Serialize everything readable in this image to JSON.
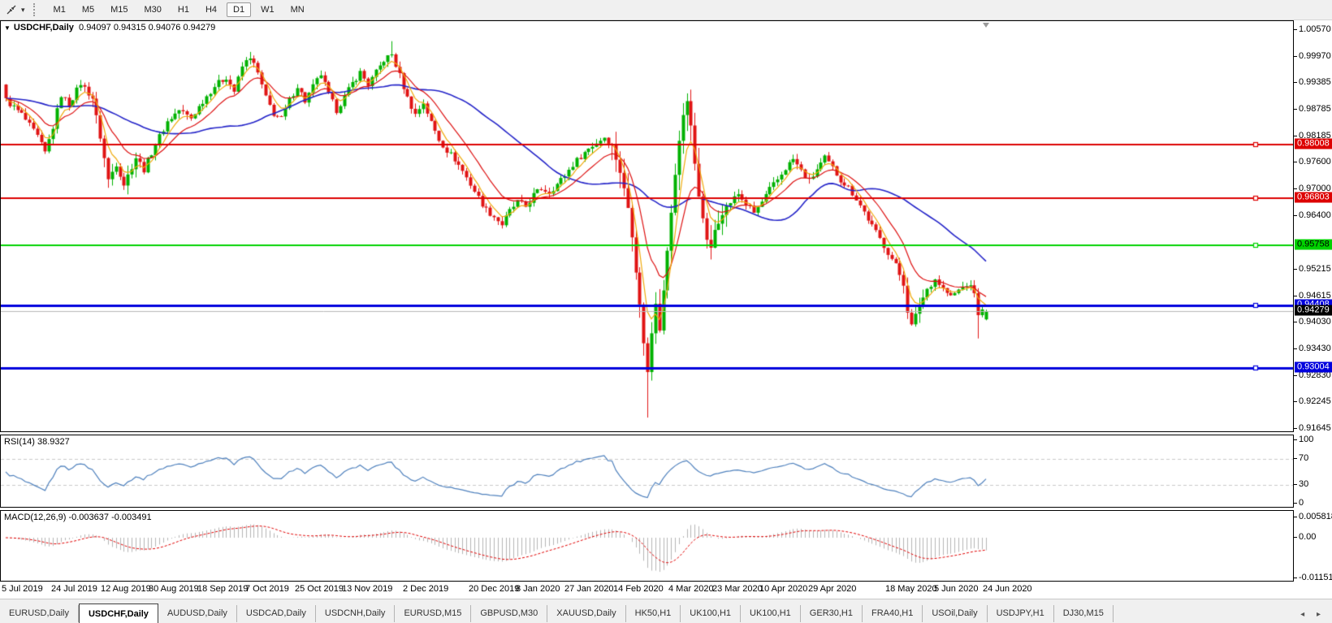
{
  "icons": {
    "caret": "▾",
    "collapse": "▼",
    "tab_prev": "◂",
    "tab_next": "▸",
    "cursor_tool": "cursor-crosshair"
  },
  "toolbar": {
    "timeframes": [
      {
        "label": "M1",
        "active": false
      },
      {
        "label": "M5",
        "active": false
      },
      {
        "label": "M15",
        "active": false
      },
      {
        "label": "M30",
        "active": false
      },
      {
        "label": "H1",
        "active": false
      },
      {
        "label": "H4",
        "active": false
      },
      {
        "label": "D1",
        "active": true
      },
      {
        "label": "W1",
        "active": false
      },
      {
        "label": "MN",
        "active": false
      }
    ]
  },
  "chart": {
    "title": "USDCHF,Daily",
    "ohlc_text": "0.94097 0.94315 0.94076 0.94279"
  },
  "rsi": {
    "title": "RSI(14) 38.9327"
  },
  "macd": {
    "title": "MACD(12,26,9) -0.003637 -0.003491"
  },
  "chart_data": {
    "type": "candlestick",
    "symbol": "USDCHF",
    "period": "Daily",
    "last_ohlc": {
      "o": 0.94097,
      "h": 0.94315,
      "l": 0.94076,
      "c": 0.94279
    },
    "y_axis": {
      "top_price": 1.00769,
      "bottom_price": 0.91593,
      "ticks": [
        1.0057,
        0.9997,
        0.99385,
        0.98785,
        0.98185,
        0.976,
        0.97,
        0.964,
        0.95215,
        0.94615,
        0.9403,
        0.9343,
        0.9283,
        0.92245,
        0.91645
      ]
    },
    "x_axis": {
      "labels": [
        "5 Jul 2019",
        "24 Jul 2019",
        "12 Aug 2019",
        "30 Aug 2019",
        "18 Sep 2019",
        "7 Oct 2019",
        "25 Oct 2019",
        "13 Nov 2019",
        "2 Dec 2019",
        "20 Dec 2019",
        "8 Jan 2020",
        "27 Jan 2020",
        "14 Feb 2020",
        "4 Mar 2020",
        "23 Mar 2020",
        "10 Apr 2020",
        "29 Apr 2020",
        "18 May 2020",
        "5 Jun 2020",
        "24 Jun 2020"
      ],
      "starts": [
        2,
        63,
        124,
        183,
        243,
        302,
        363,
        421,
        496,
        577,
        635,
        695,
        755,
        823,
        877,
        935,
        995,
        1090,
        1150,
        1210
      ]
    },
    "levels": [
      {
        "price": 0.98008,
        "label": "0.98008",
        "color": "#dd0000",
        "label_text_color": "#ffffff",
        "width": 2
      },
      {
        "price": 0.96803,
        "label": "0.96803",
        "color": "#dd0000",
        "label_text_color": "#ffffff",
        "width": 2
      },
      {
        "price": 0.95758,
        "label": "0.95758",
        "color": "#00d200",
        "label_text_color": "#000000",
        "width": 2
      },
      {
        "price": 0.94408,
        "label": "0.94408",
        "color": "#0000dd",
        "label_text_color": "#ffffff",
        "width": 3
      },
      {
        "price": 0.93004,
        "label": "0.93004",
        "color": "#0000dd",
        "label_text_color": "#ffffff",
        "width": 3
      }
    ],
    "bid_line": {
      "price": 0.94279,
      "label": "0.94279",
      "color": "#b8b8b8",
      "label_bg": "#000000",
      "label_text_color": "#ffffff"
    },
    "candles": {
      "count": 250,
      "first_open": 0.9935,
      "up_color": "#00b200",
      "down_color": "#e01414",
      "anchors": [
        [
          0,
          0.99
        ],
        [
          4,
          0.9868
        ],
        [
          8,
          0.9818
        ],
        [
          10,
          0.9782
        ],
        [
          12,
          0.984
        ],
        [
          14,
          0.9912
        ],
        [
          16,
          0.989
        ],
        [
          19,
          0.9938
        ],
        [
          22,
          0.9905
        ],
        [
          24,
          0.9818
        ],
        [
          26,
          0.9722
        ],
        [
          28,
          0.9758
        ],
        [
          30,
          0.9712
        ],
        [
          33,
          0.9772
        ],
        [
          35,
          0.9745
        ],
        [
          38,
          0.9802
        ],
        [
          41,
          0.9852
        ],
        [
          44,
          0.9878
        ],
        [
          47,
          0.986
        ],
        [
          50,
          0.9898
        ],
        [
          53,
          0.9932
        ],
        [
          56,
          0.9952
        ],
        [
          58,
          0.992
        ],
        [
          60,
          0.9975
        ],
        [
          62,
          0.9998
        ],
        [
          64,
          0.996
        ],
        [
          66,
          0.9905
        ],
        [
          68,
          0.987
        ],
        [
          70,
          0.9858
        ],
        [
          72,
          0.99
        ],
        [
          74,
          0.9932
        ],
        [
          76,
          0.9898
        ],
        [
          78,
          0.993
        ],
        [
          80,
          0.9958
        ],
        [
          82,
          0.9912
        ],
        [
          84,
          0.9878
        ],
        [
          86,
          0.9908
        ],
        [
          88,
          0.9938
        ],
        [
          90,
          0.9962
        ],
        [
          92,
          0.9935
        ],
        [
          94,
          0.9962
        ],
        [
          96,
          0.999
        ],
        [
          98,
          1.0002
        ],
        [
          100,
          0.9955
        ],
        [
          102,
          0.9905
        ],
        [
          104,
          0.9868
        ],
        [
          106,
          0.9895
        ],
        [
          108,
          0.985
        ],
        [
          110,
          0.9812
        ],
        [
          112,
          0.9788
        ],
        [
          114,
          0.9768
        ],
        [
          116,
          0.9742
        ],
        [
          118,
          0.9712
        ],
        [
          120,
          0.9682
        ],
        [
          122,
          0.9655
        ],
        [
          124,
          0.964
        ],
        [
          126,
          0.9622
        ],
        [
          128,
          0.9652
        ],
        [
          130,
          0.9672
        ],
        [
          132,
          0.9662
        ],
        [
          134,
          0.9688
        ],
        [
          136,
          0.9702
        ],
        [
          138,
          0.9695
        ],
        [
          140,
          0.9712
        ],
        [
          142,
          0.9732
        ],
        [
          144,
          0.9756
        ],
        [
          146,
          0.9775
        ],
        [
          148,
          0.9792
        ],
        [
          150,
          0.9805
        ],
        [
          152,
          0.9818
        ],
        [
          154,
          0.9798
        ],
        [
          155,
          0.977
        ],
        [
          156,
          0.974
        ],
        [
          157,
          0.97
        ],
        [
          158,
          0.966
        ],
        [
          159,
          0.96
        ],
        [
          160,
          0.952
        ],
        [
          161,
          0.944
        ],
        [
          162,
          0.936
        ],
        [
          163,
          0.929
        ],
        [
          164,
          0.938
        ],
        [
          165,
          0.945
        ],
        [
          166,
          0.939
        ],
        [
          167,
          0.948
        ],
        [
          168,
          0.956
        ],
        [
          169,
          0.965
        ],
        [
          170,
          0.973
        ],
        [
          171,
          0.981
        ],
        [
          172,
          0.987
        ],
        [
          173,
          0.9898
        ],
        [
          174,
          0.984
        ],
        [
          175,
          0.976
        ],
        [
          176,
          0.969
        ],
        [
          177,
          0.963
        ],
        [
          178,
          0.959
        ],
        [
          179,
          0.9565
        ],
        [
          180,
          0.961
        ],
        [
          182,
          0.965
        ],
        [
          184,
          0.9672
        ],
        [
          186,
          0.969
        ],
        [
          188,
          0.9668
        ],
        [
          190,
          0.9648
        ],
        [
          192,
          0.9672
        ],
        [
          194,
          0.97
        ],
        [
          196,
          0.9722
        ],
        [
          198,
          0.9748
        ],
        [
          200,
          0.9768
        ],
        [
          202,
          0.9742
        ],
        [
          204,
          0.9718
        ],
        [
          206,
          0.9745
        ],
        [
          208,
          0.977
        ],
        [
          210,
          0.9748
        ],
        [
          212,
          0.9722
        ],
        [
          214,
          0.9705
        ],
        [
          216,
          0.968
        ],
        [
          218,
          0.965
        ],
        [
          220,
          0.9618
        ],
        [
          222,
          0.959
        ],
        [
          224,
          0.956
        ],
        [
          226,
          0.953
        ],
        [
          228,
          0.949
        ],
        [
          229,
          0.943
        ],
        [
          230,
          0.9395
        ],
        [
          232,
          0.944
        ],
        [
          234,
          0.9478
        ],
        [
          236,
          0.95
        ],
        [
          238,
          0.9478
        ],
        [
          240,
          0.946
        ],
        [
          242,
          0.9475
        ],
        [
          244,
          0.9488
        ],
        [
          246,
          0.9472
        ],
        [
          247,
          0.9415
        ],
        [
          248,
          0.9438
        ],
        [
          249,
          0.94279
        ]
      ],
      "vol_zones": [
        [
          22,
          34,
          1.8
        ],
        [
          154,
          183,
          3.0
        ],
        [
          226,
          233,
          1.8
        ]
      ],
      "spikes": {
        "62": {
          "h": 1.0008
        },
        "98": {
          "h": 1.0032
        },
        "126": {
          "l": 0.9613
        },
        "163": {
          "l": 0.919
        },
        "247": {
          "l": 0.9367
        }
      }
    },
    "ma": [
      {
        "type": "sma",
        "period": 40,
        "color": "#2323c8",
        "width": 1.6
      },
      {
        "type": "ema",
        "period": 13,
        "color": "#dd1111",
        "width": 1.2
      },
      {
        "type": "ema",
        "period": 5,
        "color": "#efa90a",
        "width": 1.2
      }
    ]
  },
  "rsi_data": {
    "period": 14,
    "last": 38.9327,
    "color": "#4f81bd",
    "dashed_levels": [
      70,
      30
    ],
    "axis_ticks": [
      {
        "v": 100,
        "label": "100"
      },
      {
        "v": 70,
        "label": "70"
      },
      {
        "v": 30,
        "label": "30"
      },
      {
        "v": 0,
        "label": "0"
      }
    ]
  },
  "macd_data": {
    "fast": 12,
    "slow": 26,
    "signal": 9,
    "last": -0.003637,
    "last_signal": -0.003491,
    "hist_color": "#b4b4b4",
    "signal_color": "#e00000",
    "axis_ticks": [
      {
        "v": 0.005818,
        "label": "0.005818"
      },
      {
        "v": 0,
        "label": "0.00"
      },
      {
        "v": -0.011514,
        "label": "-0.011514"
      }
    ]
  },
  "tabs": [
    {
      "label": "EURUSD,Daily",
      "active": false
    },
    {
      "label": "USDCHF,Daily",
      "active": true
    },
    {
      "label": "AUDUSD,Daily",
      "active": false
    },
    {
      "label": "USDCAD,Daily",
      "active": false
    },
    {
      "label": "USDCNH,Daily",
      "active": false
    },
    {
      "label": "EURUSD,M15",
      "active": false
    },
    {
      "label": "GBPUSD,M30",
      "active": false
    },
    {
      "label": "XAUUSD,Daily",
      "active": false
    },
    {
      "label": "HK50,H1",
      "active": false
    },
    {
      "label": "UK100,H1",
      "active": false
    },
    {
      "label": "UK100,H1",
      "active": false
    },
    {
      "label": "GER30,H1",
      "active": false
    },
    {
      "label": "FRA40,H1",
      "active": false
    },
    {
      "label": "USOil,Daily",
      "active": false
    },
    {
      "label": "USDJPY,H1",
      "active": false
    },
    {
      "label": "DJ30,M15",
      "active": false
    }
  ]
}
